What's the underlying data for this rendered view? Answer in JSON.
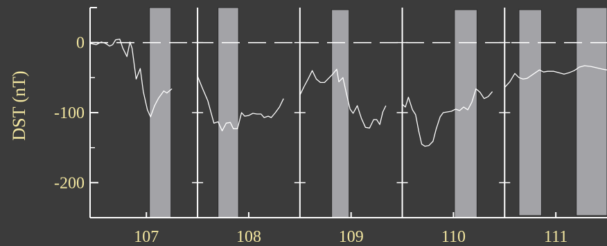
{
  "chart_data": {
    "type": "line",
    "ylabel": "DST (nT)",
    "xlabel": "",
    "xlim": [
      106.45,
      111.5
    ],
    "ylim": [
      -250,
      50
    ],
    "y_ticks": [
      0,
      -100,
      -200
    ],
    "y_tick_labels": [
      "0",
      "-100",
      "-200"
    ],
    "x_ticks": [
      107,
      108,
      109,
      110,
      111
    ],
    "x_tick_labels": [
      "107",
      "108",
      "109",
      "110",
      "111"
    ],
    "grid": "vertical lines at day boundaries",
    "colors": {
      "background": "#3b3b3b",
      "axis": "#ffffff",
      "text": "#f2e6a0",
      "line": "#ffffff",
      "shade": "#a3a3a7",
      "shade_edge": "#2a2a2a"
    },
    "separators": [
      107.5,
      108.5,
      109.5,
      110.5
    ],
    "zero_line": {
      "y": 0,
      "style": "dashed"
    },
    "shaded_intervals": [
      {
        "x0": 107.03,
        "x1": 107.24,
        "y0": -250,
        "y1": 50
      },
      {
        "x0": 107.7,
        "x1": 107.9,
        "y0": -250,
        "y1": 50
      },
      {
        "x0": 108.81,
        "x1": 108.98,
        "y0": -250,
        "y1": 47
      },
      {
        "x0": 110.01,
        "x1": 110.23,
        "y0": -250,
        "y1": 47
      },
      {
        "x0": 110.64,
        "x1": 110.86,
        "y0": -247,
        "y1": 47
      },
      {
        "x0": 111.2,
        "x1": 111.5,
        "y0": -247,
        "y1": 50
      }
    ],
    "series": [
      {
        "values": [
          [
            106.45,
            -1
          ],
          [
            106.51,
            -3
          ],
          [
            106.56,
            1
          ],
          [
            106.6,
            -1
          ],
          [
            106.64,
            -5
          ],
          [
            106.67,
            -3
          ],
          [
            106.7,
            4
          ],
          [
            106.74,
            5
          ],
          [
            106.77,
            -8
          ],
          [
            106.81,
            -20
          ],
          [
            106.84,
            1
          ],
          [
            106.86,
            -8
          ],
          [
            106.9,
            -52
          ],
          [
            106.94,
            -37
          ],
          [
            106.97,
            -70
          ],
          [
            107.01,
            -96
          ],
          [
            107.04,
            -106
          ],
          [
            107.08,
            -90
          ],
          [
            107.12,
            -79
          ],
          [
            107.17,
            -69
          ],
          [
            107.2,
            -72
          ],
          [
            107.25,
            -66
          ],
          null,
          [
            107.5,
            -48
          ],
          [
            107.55,
            -66
          ],
          [
            107.6,
            -83
          ],
          [
            107.66,
            -115
          ],
          [
            107.7,
            -113
          ],
          [
            107.74,
            -126
          ],
          [
            107.78,
            -115
          ],
          [
            107.82,
            -114
          ],
          [
            107.85,
            -123
          ],
          [
            107.89,
            -123
          ],
          [
            107.93,
            -100
          ],
          [
            107.96,
            -105
          ],
          [
            108.0,
            -104
          ],
          [
            108.04,
            -101
          ],
          [
            108.08,
            -102
          ],
          [
            108.12,
            -102
          ],
          [
            108.15,
            -107
          ],
          [
            108.19,
            -105
          ],
          [
            108.22,
            -107
          ],
          [
            108.26,
            -100
          ],
          [
            108.3,
            -92
          ],
          [
            108.34,
            -80
          ],
          null,
          [
            108.5,
            -75
          ],
          [
            108.54,
            -63
          ],
          [
            108.58,
            -52
          ],
          [
            108.62,
            -40
          ],
          [
            108.66,
            -52
          ],
          [
            108.7,
            -57
          ],
          [
            108.74,
            -57
          ],
          [
            108.78,
            -51
          ],
          [
            108.82,
            -45
          ],
          [
            108.86,
            -38
          ],
          [
            108.88,
            -56
          ],
          [
            108.92,
            -50
          ],
          [
            108.95,
            -70
          ],
          [
            108.99,
            -95
          ],
          [
            109.02,
            -101
          ],
          [
            109.06,
            -90
          ],
          [
            109.1,
            -108
          ],
          [
            109.14,
            -121
          ],
          [
            109.18,
            -122
          ],
          [
            109.22,
            -110
          ],
          [
            109.25,
            -110
          ],
          [
            109.28,
            -117
          ],
          [
            109.31,
            -99
          ],
          [
            109.34,
            -90
          ],
          null,
          [
            109.5,
            -88
          ],
          [
            109.53,
            -92
          ],
          [
            109.56,
            -78
          ],
          [
            109.6,
            -96
          ],
          [
            109.63,
            -103
          ],
          [
            109.66,
            -126
          ],
          [
            109.69,
            -145
          ],
          [
            109.72,
            -148
          ],
          [
            109.76,
            -147
          ],
          [
            109.8,
            -141
          ],
          [
            109.83,
            -124
          ],
          [
            109.87,
            -106
          ],
          [
            109.9,
            -100
          ],
          [
            109.94,
            -99
          ],
          [
            109.98,
            -98
          ],
          [
            110.02,
            -95
          ],
          [
            110.06,
            -97
          ],
          [
            110.1,
            -92
          ],
          [
            110.14,
            -96
          ],
          [
            110.18,
            -85
          ],
          [
            110.22,
            -66
          ],
          [
            110.26,
            -71
          ],
          [
            110.3,
            -80
          ],
          [
            110.34,
            -77
          ],
          [
            110.38,
            -70
          ],
          null,
          [
            110.5,
            -64
          ],
          [
            110.55,
            -56
          ],
          [
            110.6,
            -44
          ],
          [
            110.64,
            -50
          ],
          [
            110.68,
            -52
          ],
          [
            110.72,
            -51
          ],
          [
            110.78,
            -45
          ],
          [
            110.84,
            -39
          ],
          [
            110.88,
            -42
          ],
          [
            110.92,
            -41
          ],
          [
            110.98,
            -41
          ],
          [
            111.03,
            -43
          ],
          [
            111.08,
            -45
          ],
          [
            111.13,
            -43
          ],
          [
            111.18,
            -40
          ],
          [
            111.23,
            -35
          ],
          [
            111.28,
            -33
          ],
          [
            111.34,
            -34
          ],
          [
            111.4,
            -36
          ],
          [
            111.46,
            -38
          ],
          [
            111.5,
            -39
          ]
        ]
      }
    ]
  }
}
